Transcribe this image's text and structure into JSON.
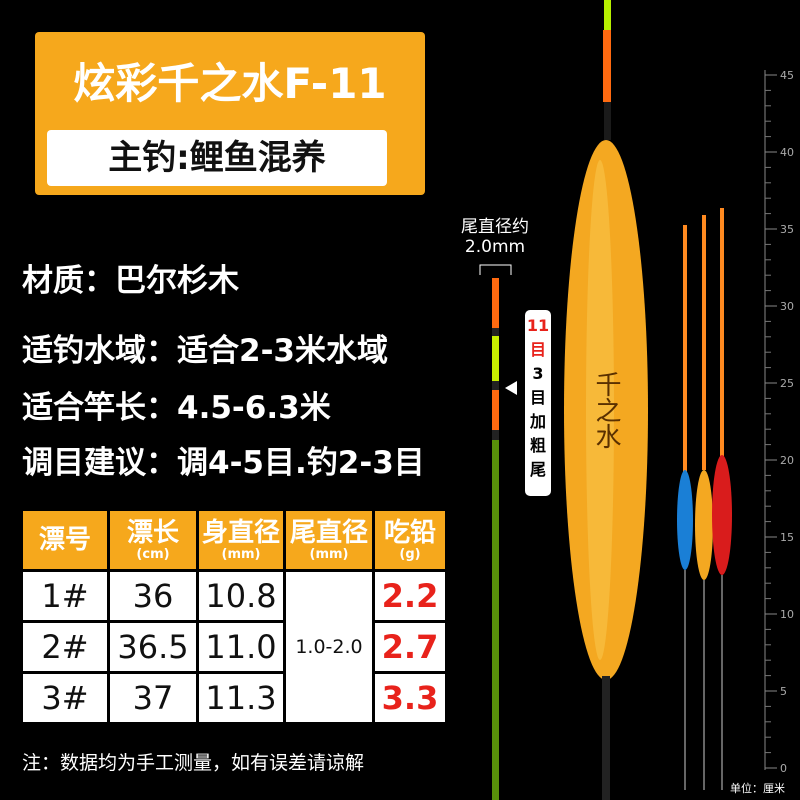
{
  "header": {
    "title": "炫彩千之水F-11",
    "subtitle": "主钓:鲤鱼混养"
  },
  "specs": [
    "材质：巴尔杉木",
    "适钓水域：适合2-3米水域",
    "适合竿长：4.5-6.3米",
    "调目建议：调4-5目.钓2-3目"
  ],
  "callout": {
    "line1": "尾直径约",
    "line2": "2.0mm"
  },
  "tag": {
    "red": "11目",
    "black": "3目加粗尾"
  },
  "float_text": "千之水",
  "table": {
    "headers": [
      {
        "label": "漂号"
      },
      {
        "label": "漂长",
        "unit": "(cm)"
      },
      {
        "label": "身直径",
        "unit": "(mm)"
      },
      {
        "label": "尾直径",
        "unit": "(mm)"
      },
      {
        "label": "吃铅",
        "unit": "(g)"
      }
    ],
    "rows": [
      [
        "1#",
        "36",
        "10.8",
        "2.2"
      ],
      [
        "2#",
        "36.5",
        "11.0",
        "2.7"
      ],
      [
        "3#",
        "37",
        "11.3",
        "3.3"
      ]
    ],
    "tail_diameter": "1.0-2.0"
  },
  "ruler": {
    "labels": [
      0,
      5,
      10,
      15,
      20,
      25,
      30,
      35,
      40,
      45
    ],
    "unit": "单位：厘米"
  },
  "note": "注：数据均为手工测量，如有误差请谅解"
}
